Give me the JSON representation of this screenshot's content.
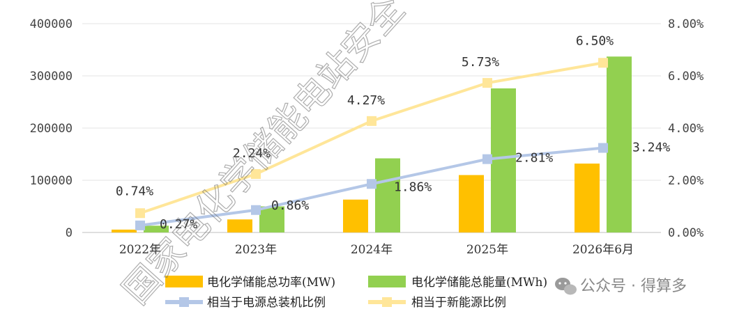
{
  "watermark": "国家电化学储能电站安全",
  "brand": {
    "icon": "wechat-icon",
    "text": "公众号 · 得算多"
  },
  "chart_data": {
    "type": "bar",
    "categories": [
      "2022年",
      "2023年",
      "2024年",
      "2025年",
      "2026年6月"
    ],
    "y_left": {
      "ticks": [
        "0",
        "100000",
        "200000",
        "300000",
        "400000"
      ],
      "ylim": [
        0,
        400000
      ]
    },
    "y_right": {
      "ticks": [
        "0.00%",
        "2.00%",
        "4.00%",
        "6.00%",
        "8.00%"
      ],
      "ylim": [
        0,
        8
      ]
    },
    "grid": true,
    "legend_position": "bottom",
    "bar_series": [
      {
        "name": "电化学储能总功率(MW)",
        "color": "#FFC000",
        "values": [
          5500,
          25000,
          63000,
          110000,
          132000
        ]
      },
      {
        "name": "电化学储能总能量(MWh)",
        "color": "#92D050",
        "values": [
          13000,
          50000,
          142000,
          276000,
          337000
        ]
      }
    ],
    "line_series": [
      {
        "name": "相当于电源总装机比例",
        "color": "#B4C7E7",
        "axis": "right",
        "values": [
          0.27,
          0.86,
          1.86,
          2.81,
          3.24
        ],
        "labels": [
          "0.27%",
          "0.86%",
          "1.86%",
          "2.81%",
          "3.24%"
        ]
      },
      {
        "name": "相当于新能源比例",
        "color": "#FFE699",
        "axis": "right",
        "values": [
          0.74,
          2.24,
          4.27,
          5.73,
          6.5
        ],
        "labels": [
          "0.74%",
          "2.24%",
          "4.27%",
          "5.73%",
          "6.50%"
        ]
      }
    ]
  }
}
